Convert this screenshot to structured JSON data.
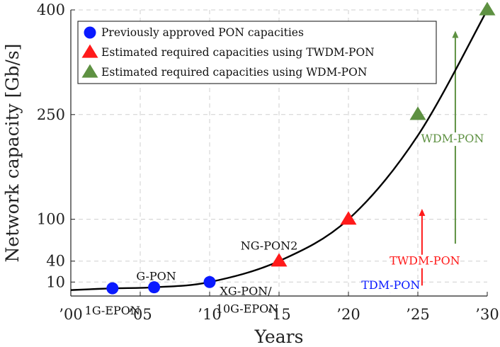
{
  "chart_data": {
    "type": "scatter",
    "title": "",
    "xlabel": "Years",
    "ylabel": "Network capacity [Gb/s]",
    "xlim": [
      2000,
      2030
    ],
    "ylim": [
      -10,
      400
    ],
    "x_ticks": [
      2000,
      2005,
      2010,
      2015,
      2020,
      2025,
      2030
    ],
    "x_tick_labels": [
      "’00",
      "’05",
      "’10",
      "’15",
      "’20",
      "’25",
      "’30"
    ],
    "y_ticks": [
      10,
      40,
      100,
      250,
      400
    ],
    "y_tick_labels": [
      "10",
      "40",
      "100",
      "250",
      "400"
    ],
    "grid": true,
    "legend_position": "top-left",
    "colors": {
      "blue": "#0a1aff",
      "red": "#ff1a1a",
      "green": "#5e9142",
      "curve": "#000000",
      "grid": "#cfcfcf"
    },
    "series": [
      {
        "name": "Previously approved PON capacities",
        "marker": "circle",
        "color": "#0a1aff",
        "points": [
          {
            "x": 2003,
            "y": 1,
            "label": "1G-EPON"
          },
          {
            "x": 2006,
            "y": 2.5,
            "label": "G-PON"
          },
          {
            "x": 2010,
            "y": 10,
            "label": "XG-PON/ 10G-EPON"
          }
        ]
      },
      {
        "name": "Estimated required capacities using TWDM-PON",
        "marker": "triangle",
        "color": "#ff1a1a",
        "points": [
          {
            "x": 2015,
            "y": 40,
            "label": "NG-PON2"
          },
          {
            "x": 2020,
            "y": 100,
            "label": ""
          }
        ]
      },
      {
        "name": "Estimated required capacities using WDM-PON",
        "marker": "triangle",
        "color": "#5e9142",
        "points": [
          {
            "x": 2025,
            "y": 250,
            "label": ""
          },
          {
            "x": 2030,
            "y": 400,
            "label": ""
          }
        ]
      }
    ],
    "trend_curve": {
      "color": "#000000",
      "points": [
        [
          2000,
          -1.5
        ],
        [
          2003,
          1
        ],
        [
          2006,
          2.5
        ],
        [
          2010,
          10
        ],
        [
          2015,
          40
        ],
        [
          2020,
          100
        ],
        [
          2025,
          220
        ],
        [
          2030,
          400
        ]
      ]
    },
    "arrows": [
      {
        "label": "TDM-PON",
        "color": "#0a1aff",
        "x": 2023,
        "y_from": -5,
        "y_to": 8,
        "dashed": true
      },
      {
        "label": "TWDM-PON",
        "color": "#ff1a1a",
        "x": 2025.3,
        "y_from": 5,
        "y_to": 115,
        "dashed": false
      },
      {
        "label": "WDM-PON",
        "color": "#5e9142",
        "x": 2027.7,
        "y_from": 65,
        "y_to": 370,
        "dashed": false
      }
    ]
  }
}
